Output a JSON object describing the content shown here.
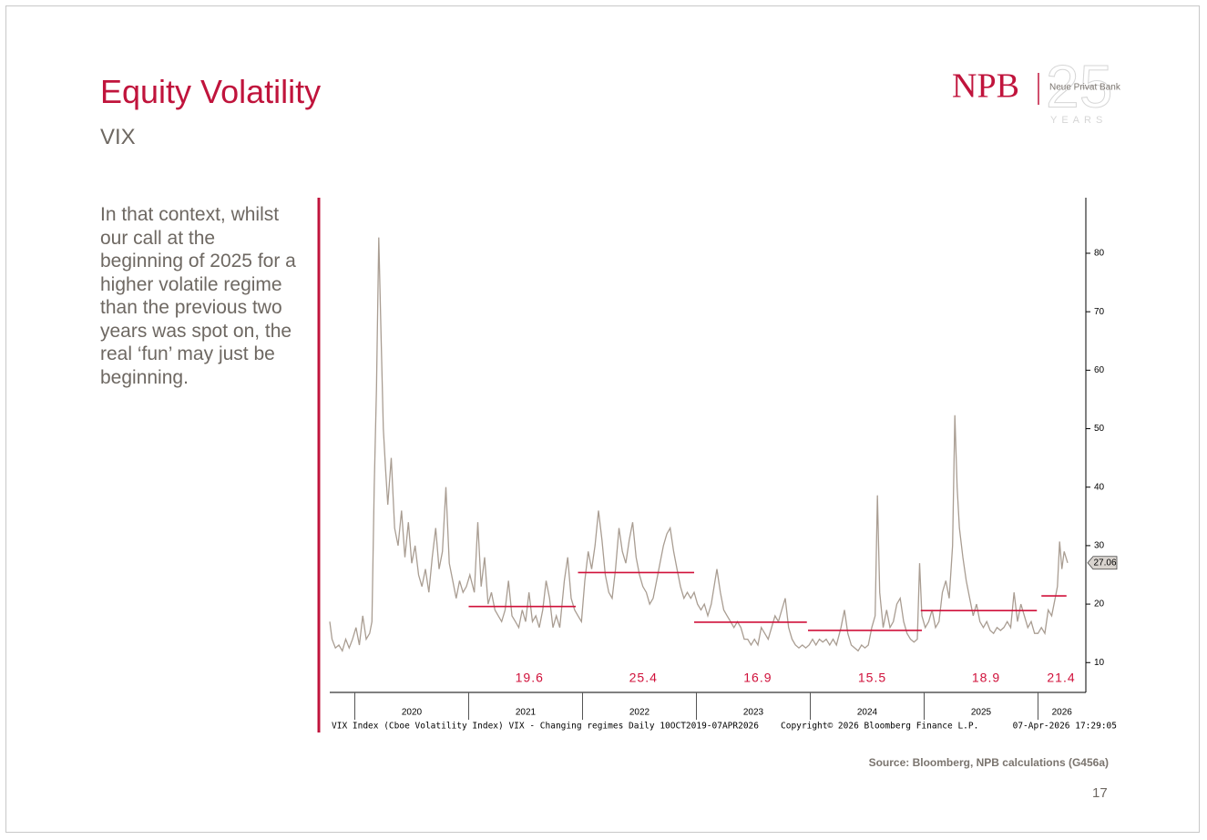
{
  "header": {
    "title": "Equity Volatility",
    "subtitle": "VIX"
  },
  "logo": {
    "brand": "NPB",
    "name": "Neue Privat Bank",
    "anniversary": "25",
    "years": "YEARS"
  },
  "body_text": "In that context, whilst our call at the beginning of 2025 for a higher volatile regime than the previous two years was spot on, the real ‘fun’ may just be beginning.",
  "chart_data": {
    "type": "line",
    "color": "#a99d92",
    "footer_left": "VIX Index (Cboe Volatility Index) VIX - Changing regimes Daily 10OCT2019-07APR2026",
    "footer_center": "Copyright© 2026 Bloomberg Finance L.P.",
    "footer_right": "07-Apr-2026 17:29:05",
    "xlim": [
      2019.78,
      2026.42
    ],
    "xticks": [
      {
        "value": 2020,
        "label": "2020"
      },
      {
        "value": 2021,
        "label": "2021"
      },
      {
        "value": 2022,
        "label": "2022"
      },
      {
        "value": 2023,
        "label": "2023"
      },
      {
        "value": 2024,
        "label": "2024"
      },
      {
        "value": 2025,
        "label": "2025"
      },
      {
        "value": 2026,
        "label": "2026"
      }
    ],
    "ylim": [
      4.9,
      89.5
    ],
    "yticks": [
      10,
      20,
      30,
      40,
      50,
      60,
      70,
      80
    ],
    "x": [
      2019.78,
      2019.8,
      2019.83,
      2019.86,
      2019.89,
      2019.92,
      2019.95,
      2019.98,
      2020.01,
      2020.04,
      2020.07,
      2020.1,
      2020.13,
      2020.15,
      2020.17,
      2020.19,
      2020.21,
      2020.23,
      2020.25,
      2020.27,
      2020.29,
      2020.32,
      2020.35,
      2020.38,
      2020.41,
      2020.44,
      2020.47,
      2020.5,
      2020.53,
      2020.56,
      2020.59,
      2020.62,
      2020.65,
      2020.68,
      2020.71,
      2020.74,
      2020.77,
      2020.8,
      2020.83,
      2020.86,
      2020.89,
      2020.92,
      2020.95,
      2020.98,
      2021.01,
      2021.05,
      2021.08,
      2021.11,
      2021.14,
      2021.17,
      2021.2,
      2021.23,
      2021.26,
      2021.29,
      2021.32,
      2021.35,
      2021.38,
      2021.41,
      2021.44,
      2021.47,
      2021.5,
      2021.53,
      2021.56,
      2021.59,
      2021.62,
      2021.65,
      2021.68,
      2021.71,
      2021.74,
      2021.77,
      2021.8,
      2021.84,
      2021.87,
      2021.9,
      2021.93,
      2021.96,
      2021.99,
      2022.02,
      2022.05,
      2022.08,
      2022.11,
      2022.14,
      2022.17,
      2022.2,
      2022.23,
      2022.26,
      2022.29,
      2022.32,
      2022.35,
      2022.38,
      2022.41,
      2022.44,
      2022.47,
      2022.5,
      2022.53,
      2022.56,
      2022.59,
      2022.62,
      2022.65,
      2022.68,
      2022.71,
      2022.74,
      2022.77,
      2022.8,
      2022.83,
      2022.86,
      2022.89,
      2022.92,
      2022.95,
      2022.98,
      2023.01,
      2023.04,
      2023.07,
      2023.1,
      2023.13,
      2023.18,
      2023.21,
      2023.24,
      2023.27,
      2023.3,
      2023.33,
      2023.36,
      2023.39,
      2023.42,
      2023.45,
      2023.48,
      2023.51,
      2023.54,
      2023.57,
      2023.6,
      2023.63,
      2023.66,
      2023.69,
      2023.72,
      2023.75,
      2023.78,
      2023.81,
      2023.84,
      2023.87,
      2023.9,
      2023.93,
      2023.96,
      2023.99,
      2024.02,
      2024.05,
      2024.08,
      2024.11,
      2024.14,
      2024.17,
      2024.2,
      2024.23,
      2024.27,
      2024.3,
      2024.33,
      2024.36,
      2024.39,
      2024.42,
      2024.45,
      2024.48,
      2024.51,
      2024.54,
      2024.57,
      2024.59,
      2024.61,
      2024.64,
      2024.67,
      2024.7,
      2024.73,
      2024.76,
      2024.79,
      2024.82,
      2024.85,
      2024.88,
      2024.91,
      2024.94,
      2024.96,
      2024.98,
      2025.01,
      2025.04,
      2025.07,
      2025.1,
      2025.13,
      2025.16,
      2025.19,
      2025.22,
      2025.25,
      2025.27,
      2025.29,
      2025.31,
      2025.34,
      2025.37,
      2025.4,
      2025.43,
      2025.46,
      2025.49,
      2025.52,
      2025.55,
      2025.58,
      2025.61,
      2025.64,
      2025.67,
      2025.7,
      2025.73,
      2025.76,
      2025.79,
      2025.82,
      2025.85,
      2025.88,
      2025.91,
      2025.94,
      2025.97,
      2026.0,
      2026.03,
      2026.06,
      2026.09,
      2026.12,
      2026.15,
      2026.17,
      2026.19,
      2026.21,
      2026.23,
      2026.26
    ],
    "values": [
      17,
      14,
      12.5,
      13,
      12,
      14,
      12.5,
      14,
      16,
      13,
      18,
      14,
      15,
      17,
      40,
      57,
      82.7,
      66,
      50,
      43,
      37,
      45,
      33,
      30,
      36,
      28,
      34,
      27,
      30,
      25,
      23,
      26,
      22,
      28,
      33,
      26,
      29,
      40,
      27,
      24,
      21,
      24,
      22,
      23,
      25,
      22,
      34,
      23,
      28,
      20,
      22,
      19,
      18,
      17,
      19,
      24,
      18,
      17,
      16,
      19,
      17,
      22,
      17,
      18,
      16,
      19,
      24,
      21,
      16,
      18,
      16,
      24,
      28,
      21,
      19,
      18,
      17,
      24,
      29,
      26,
      30,
      36,
      31,
      25,
      22,
      21,
      26,
      33,
      29,
      27,
      31,
      34,
      28,
      25,
      23,
      22,
      20,
      21,
      24,
      27,
      30,
      32,
      33,
      29,
      26,
      23,
      21,
      22,
      21,
      22,
      20,
      19,
      20,
      18,
      20,
      26,
      22,
      19,
      18,
      17,
      16,
      17,
      16,
      14,
      14,
      13,
      14,
      13,
      16,
      15,
      14,
      16,
      18,
      17,
      19,
      21,
      16,
      14,
      13,
      12.5,
      13,
      12.5,
      13,
      14,
      13,
      14,
      13.5,
      14,
      13,
      14,
      13,
      16,
      19,
      15,
      13,
      12.5,
      12,
      13,
      12.5,
      13,
      16,
      18,
      38.6,
      22,
      16,
      19,
      16,
      17,
      20,
      21,
      17,
      15,
      14,
      13.5,
      14,
      27,
      18,
      16,
      17,
      19,
      16,
      17,
      22,
      24,
      21,
      30,
      52.3,
      40,
      33,
      28,
      24,
      21,
      18,
      20,
      17,
      16,
      17,
      15.5,
      15,
      16,
      15.5,
      16,
      17,
      16,
      22,
      17,
      20,
      18,
      16,
      17,
      15,
      15,
      16,
      15,
      19,
      18,
      21,
      23,
      30.7,
      26,
      29,
      27.06
    ],
    "regime_color": "#d0103a",
    "regimes": [
      {
        "start": 2021.0,
        "end": 2021.94,
        "value": 19.6
      },
      {
        "start": 2021.96,
        "end": 2022.98,
        "value": 25.4
      },
      {
        "start": 2022.98,
        "end": 2023.97,
        "value": 16.9
      },
      {
        "start": 2023.98,
        "end": 2024.98,
        "value": 15.5
      },
      {
        "start": 2024.97,
        "end": 2025.99,
        "value": 18.9
      },
      {
        "start": 2026.03,
        "end": 2026.25,
        "value": 21.4
      }
    ]
  },
  "source": "Source: Bloomberg, NPB calculations (G456a)",
  "page_number": "17"
}
